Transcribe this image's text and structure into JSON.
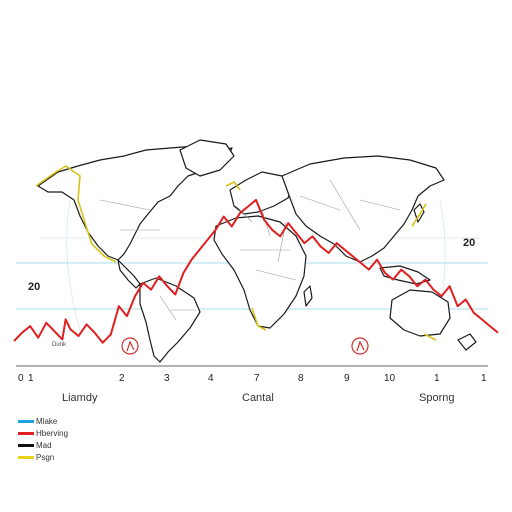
{
  "chart_data": {
    "type": "line",
    "x_ticks": [
      "0",
      "1",
      "2",
      "3",
      "4",
      "7",
      "8",
      "9",
      "10",
      "1",
      "1"
    ],
    "y_labels": [
      "20",
      "20"
    ],
    "xlabels": [
      "Liamdy",
      "Cantal",
      "Sporng"
    ],
    "small_label": "Dunk",
    "series": [
      {
        "name": "Hberving",
        "color": "#e02020",
        "x": [
          0,
          0.5,
          1,
          1.5,
          2,
          2.5,
          3,
          3.2,
          3.5,
          4,
          4.5,
          5,
          5.5,
          6,
          6.5,
          7,
          7.5,
          8,
          8.5,
          9,
          9.5,
          10,
          10.5,
          11,
          11.5,
          12,
          12.5,
          13,
          13.5,
          14,
          14.5,
          15,
          15.5,
          16,
          16.5,
          17,
          17.5,
          18,
          18.5,
          19,
          19.5,
          20,
          20.5,
          21,
          21.5,
          22,
          22.5,
          23,
          23.5,
          24,
          24.5,
          25,
          25.5,
          26,
          26.5,
          27,
          27.5,
          28,
          28.5,
          29,
          29.5,
          30
        ],
        "values": [
          3,
          8,
          12,
          5,
          14,
          9,
          4,
          16,
          10,
          6,
          13,
          8,
          2,
          7,
          24,
          18,
          30,
          38,
          34,
          42,
          36,
          31,
          44,
          52,
          58,
          64,
          70,
          78,
          72,
          80,
          84,
          88,
          76,
          70,
          66,
          74,
          68,
          62,
          66,
          60,
          56,
          62,
          58,
          54,
          50,
          46,
          52,
          44,
          40,
          46,
          42,
          36,
          40,
          34,
          30,
          36,
          24,
          28,
          20,
          16,
          12,
          8
        ]
      }
    ],
    "legend": [
      {
        "label": "Mlake",
        "color": "#1f9fe0"
      },
      {
        "label": "Hberving",
        "color": "#e02020"
      },
      {
        "label": "Mad",
        "color": "#111111"
      },
      {
        "label": "Psgn",
        "color": "#e8d21a"
      }
    ],
    "annotations": [
      "circle-marker",
      "circle-marker"
    ]
  }
}
